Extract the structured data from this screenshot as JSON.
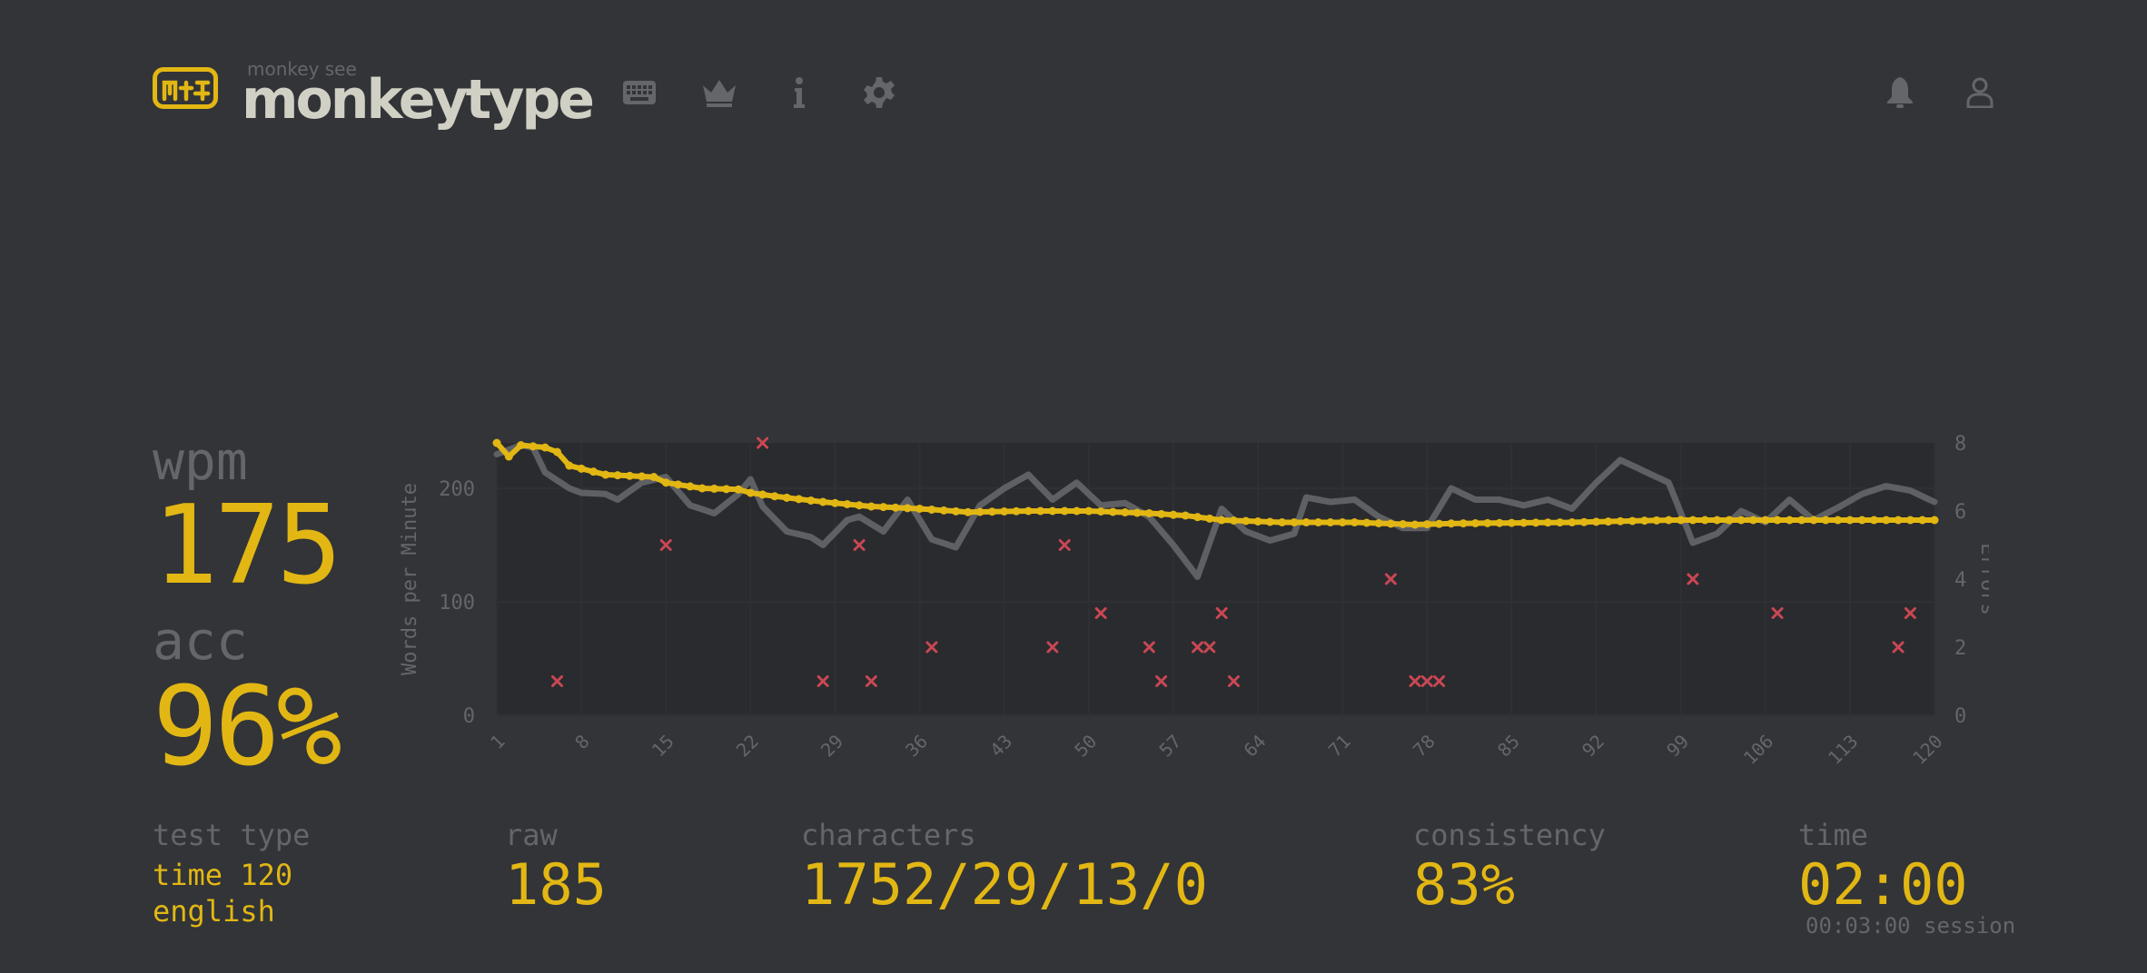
{
  "header": {
    "logo_subtitle": "monkey see",
    "logo_title": "monkeytype",
    "nav": [
      {
        "icon": "keyboard-icon"
      },
      {
        "icon": "crown-icon"
      },
      {
        "icon": "info-icon"
      },
      {
        "icon": "gear-icon"
      }
    ],
    "right": [
      {
        "icon": "bell-icon"
      },
      {
        "icon": "user-icon"
      }
    ]
  },
  "results": {
    "wpm_label": "wpm",
    "wpm_value": "175",
    "acc_label": "acc",
    "acc_value": "96%"
  },
  "stats": {
    "test_type_label": "test type",
    "test_type_line1": "time 120",
    "test_type_line2": "english",
    "raw_label": "raw",
    "raw_value": "185",
    "characters_label": "characters",
    "characters_value": "1752/29/13/0",
    "consistency_label": "consistency",
    "consistency_value": "83%",
    "time_label": "time",
    "time_value": "02:00",
    "session_value": "00:03:00 session"
  },
  "colors": {
    "background": "#323437",
    "accent": "#e2b714",
    "sub": "#646669",
    "text": "#d1d0c5",
    "error": "#ca4754",
    "raw_line": "#5f6063",
    "chart_bg": "#2a2b2e"
  },
  "chart_data": {
    "type": "line",
    "xlabel": "",
    "ylabel": "Words per Minute",
    "y2label": "Errors",
    "ylim": [
      0,
      240
    ],
    "y2lim": [
      0,
      8
    ],
    "yticks": [
      0,
      100,
      200
    ],
    "y2ticks": [
      0,
      2,
      4,
      6,
      8
    ],
    "xtick_labels": [
      "1",
      "8",
      "15",
      "22",
      "29",
      "36",
      "43",
      "50",
      "57",
      "64",
      "71",
      "78",
      "85",
      "92",
      "99",
      "106",
      "113",
      "120"
    ],
    "x_range": [
      1,
      120
    ],
    "series": [
      {
        "name": "wpm",
        "color": "#e2b714",
        "points": [
          [
            1,
            240
          ],
          [
            2,
            228
          ],
          [
            3,
            238
          ],
          [
            5,
            236
          ],
          [
            6,
            232
          ],
          [
            7,
            220
          ],
          [
            10,
            212
          ],
          [
            14,
            210
          ],
          [
            15,
            205
          ],
          [
            18,
            200
          ],
          [
            21,
            199
          ],
          [
            22,
            196
          ],
          [
            24,
            193
          ],
          [
            28,
            188
          ],
          [
            32,
            184
          ],
          [
            36,
            182
          ],
          [
            40,
            179
          ],
          [
            45,
            180
          ],
          [
            50,
            180
          ],
          [
            55,
            178
          ],
          [
            58,
            176
          ],
          [
            61,
            172
          ],
          [
            66,
            170
          ],
          [
            72,
            170
          ],
          [
            77,
            168
          ],
          [
            80,
            169
          ],
          [
            90,
            170
          ],
          [
            98,
            172
          ],
          [
            110,
            172
          ],
          [
            120,
            172
          ]
        ]
      },
      {
        "name": "raw",
        "color": "#5f6063",
        "points": [
          [
            1,
            230
          ],
          [
            3,
            238
          ],
          [
            4,
            236
          ],
          [
            5,
            214
          ],
          [
            7,
            200
          ],
          [
            8,
            196
          ],
          [
            10,
            195
          ],
          [
            11,
            190
          ],
          [
            13,
            205
          ],
          [
            15,
            210
          ],
          [
            17,
            185
          ],
          [
            19,
            178
          ],
          [
            21,
            195
          ],
          [
            22,
            208
          ],
          [
            23,
            184
          ],
          [
            25,
            162
          ],
          [
            27,
            157
          ],
          [
            28,
            150
          ],
          [
            30,
            172
          ],
          [
            31,
            175
          ],
          [
            33,
            162
          ],
          [
            35,
            190
          ],
          [
            37,
            155
          ],
          [
            39,
            148
          ],
          [
            41,
            185
          ],
          [
            43,
            200
          ],
          [
            45,
            212
          ],
          [
            47,
            190
          ],
          [
            49,
            205
          ],
          [
            51,
            185
          ],
          [
            53,
            187
          ],
          [
            55,
            175
          ],
          [
            57,
            150
          ],
          [
            59,
            122
          ],
          [
            61,
            182
          ],
          [
            63,
            162
          ],
          [
            65,
            154
          ],
          [
            67,
            160
          ],
          [
            68,
            192
          ],
          [
            70,
            188
          ],
          [
            72,
            190
          ],
          [
            74,
            175
          ],
          [
            76,
            165
          ],
          [
            78,
            165
          ],
          [
            80,
            200
          ],
          [
            82,
            190
          ],
          [
            84,
            190
          ],
          [
            86,
            185
          ],
          [
            88,
            190
          ],
          [
            90,
            182
          ],
          [
            92,
            205
          ],
          [
            94,
            225
          ],
          [
            96,
            215
          ],
          [
            98,
            205
          ],
          [
            100,
            152
          ],
          [
            102,
            160
          ],
          [
            104,
            180
          ],
          [
            106,
            170
          ],
          [
            108,
            190
          ],
          [
            110,
            172
          ],
          [
            112,
            183
          ],
          [
            114,
            195
          ],
          [
            116,
            202
          ],
          [
            118,
            198
          ],
          [
            120,
            188
          ]
        ]
      }
    ],
    "errors": [
      [
        6,
        1
      ],
      [
        15,
        5
      ],
      [
        23,
        8
      ],
      [
        28,
        1
      ],
      [
        31,
        5
      ],
      [
        32,
        1
      ],
      [
        37,
        2
      ],
      [
        47,
        2
      ],
      [
        48,
        5
      ],
      [
        51,
        3
      ],
      [
        55,
        2
      ],
      [
        56,
        1
      ],
      [
        59,
        2
      ],
      [
        60,
        2
      ],
      [
        61,
        3
      ],
      [
        62,
        1
      ],
      [
        75,
        4
      ],
      [
        77,
        1
      ],
      [
        78,
        1
      ],
      [
        79,
        1
      ],
      [
        100,
        4
      ],
      [
        107,
        3
      ],
      [
        117,
        2
      ],
      [
        118,
        3
      ]
    ]
  }
}
